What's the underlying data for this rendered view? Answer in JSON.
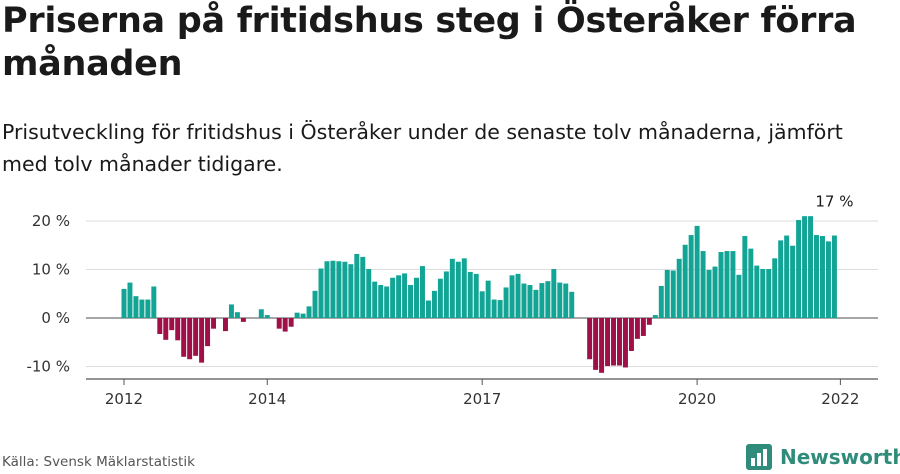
{
  "title": "Priserna på fritidshus steg i Österåker förra månaden",
  "subtitle": "Prisutveckling för fritidshus i Österåker under de senaste tolv månaderna, jämfört med tolv månader tidigare.",
  "source": "Källa: Svensk Mäklarstatistik",
  "brand": "Newsworthy",
  "colors": {
    "positive": "#12a595",
    "negative": "#a01048",
    "brand": "#2f8c7a"
  },
  "chart_data": {
    "type": "bar",
    "ylabel_unit": "%",
    "ylim": [
      -12,
      22
    ],
    "yticks": [
      -10,
      0,
      10,
      20
    ],
    "ytick_labels": [
      "-10 %",
      "0 %",
      "10 %",
      "20 %"
    ],
    "xtick_labels": [
      "2012",
      "2014",
      "2017",
      "2020",
      "2022"
    ],
    "annotation": "17 %",
    "start": "2012-01",
    "end": "2022-01",
    "values": [
      6,
      7.3,
      4.5,
      3.8,
      3.8,
      6.5,
      -3.3,
      -4.5,
      -2.5,
      -4.6,
      -8,
      -8.5,
      -7.8,
      -9.2,
      -5.8,
      -2.2,
      0,
      -2.7,
      2.8,
      1.2,
      -0.8,
      0,
      0,
      1.8,
      0.6,
      0,
      -2.2,
      -2.8,
      -1.8,
      1.1,
      0.9,
      2.4,
      5.6,
      10.2,
      11.7,
      11.8,
      11.7,
      11.6,
      11.1,
      13.2,
      12.6,
      10.1,
      7.5,
      6.8,
      6.5,
      8.3,
      8.8,
      9.2,
      6.8,
      8.3,
      10.7,
      3.6,
      5.6,
      8.1,
      9.6,
      12.2,
      11.6,
      12.3,
      9.5,
      9.1,
      5.5,
      7.7,
      3.8,
      3.7,
      6.3,
      8.8,
      9.1,
      7.1,
      6.8,
      5.8,
      7.2,
      7.6,
      10.1,
      7.3,
      7.1,
      5.4,
      0,
      0,
      -8.5,
      -10.7,
      -11.3,
      -9.9,
      -9.8,
      -9.8,
      -10.2,
      -6.8,
      -4.3,
      -3.7,
      -1.4,
      0.6,
      6.6,
      9.9,
      9.8,
      12.2,
      15.1,
      17.1,
      19,
      13.8,
      9.9,
      10.6,
      13.6,
      13.8,
      13.8,
      8.9,
      16.9,
      14.3,
      10.8,
      10.1,
      10.1,
      12.3,
      16,
      17,
      14.9,
      20.2,
      21,
      21,
      17.1,
      16.9,
      15.8,
      17
    ]
  }
}
